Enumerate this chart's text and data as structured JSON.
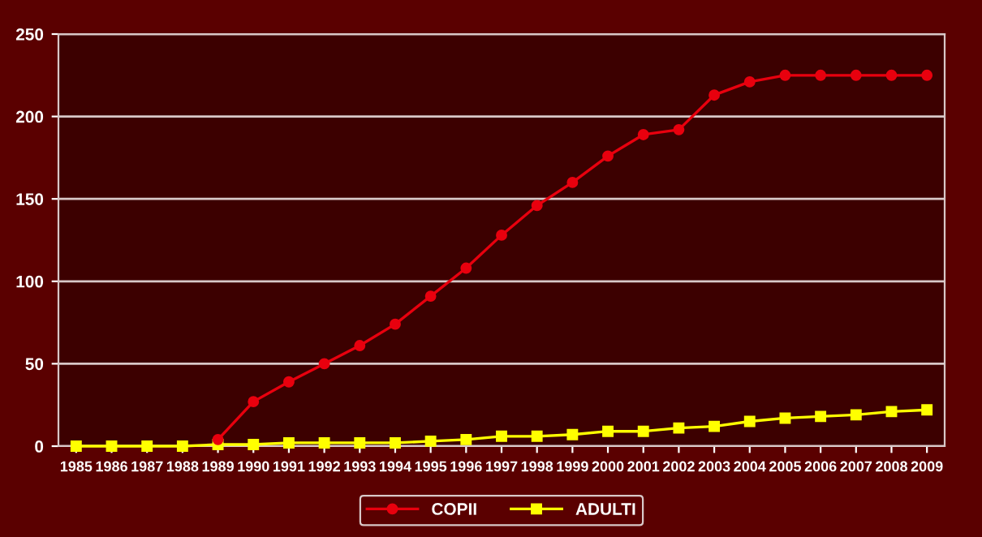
{
  "chart_data": {
    "type": "line",
    "categories": [
      "1985",
      "1986",
      "1987",
      "1988",
      "1989",
      "1990",
      "1991",
      "1992",
      "1993",
      "1994",
      "1995",
      "1996",
      "1997",
      "1998",
      "1999",
      "2000",
      "2001",
      "2002",
      "2003",
      "2004",
      "2005",
      "2006",
      "2007",
      "2008",
      "2009"
    ],
    "series": [
      {
        "name": "COPII",
        "color": "#e8000e",
        "marker": "circle",
        "values": [
          null,
          null,
          null,
          null,
          4,
          27,
          39,
          50,
          61,
          74,
          91,
          108,
          128,
          146,
          160,
          176,
          189,
          192,
          213,
          221,
          225,
          225,
          225,
          225,
          225
        ]
      },
      {
        "name": "ADULTI",
        "color": "#ffff00",
        "marker": "square",
        "values": [
          0,
          0,
          0,
          0,
          1,
          1,
          2,
          2,
          2,
          2,
          3,
          4,
          6,
          6,
          7,
          9,
          9,
          11,
          12,
          15,
          17,
          18,
          19,
          21,
          22
        ]
      }
    ],
    "ylim": [
      0,
      250
    ],
    "yticks": [
      0,
      50,
      100,
      150,
      200,
      250
    ],
    "grid": "y",
    "legend": "bottom"
  }
}
